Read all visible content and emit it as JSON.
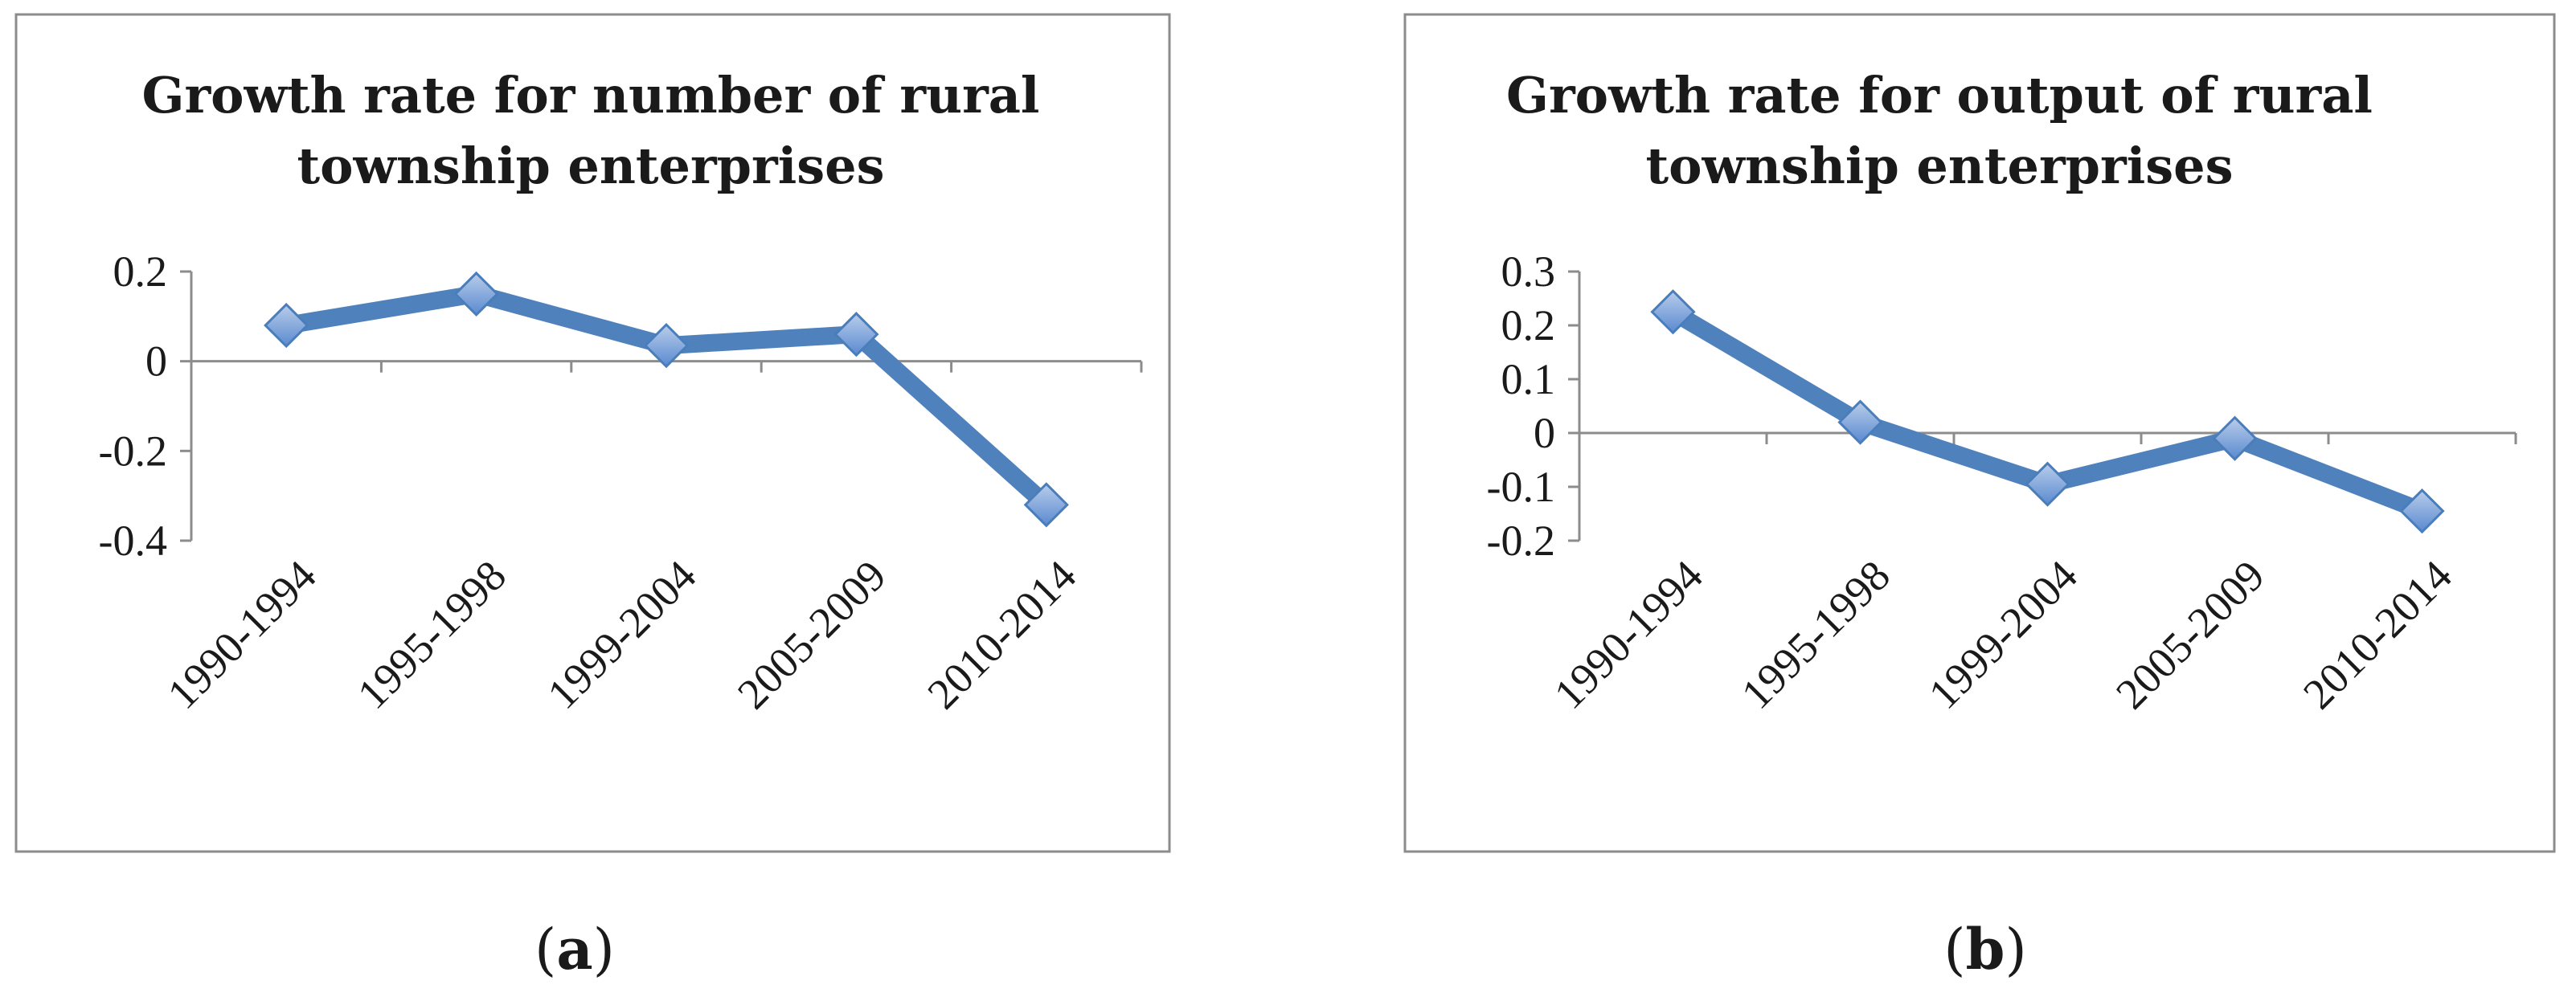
{
  "chart_data": [
    {
      "type": "line",
      "title_lines": [
        "Growth rate for number of rural",
        "township enterprises"
      ],
      "categories": [
        "1990-1994",
        "1995-1998",
        "1999-2004",
        "2005-2009",
        "2010-2014"
      ],
      "values": [
        0.08,
        0.15,
        0.035,
        0.06,
        -0.32
      ],
      "yticks": [
        "0.2",
        "0",
        "-0.2",
        "-0.4"
      ],
      "ylim": [
        -0.4,
        0.2
      ],
      "grid": false,
      "legend": "none",
      "line_color": "#4f81bd",
      "caption_open": "(",
      "caption_letter": "a",
      "caption_close": ")"
    },
    {
      "type": "line",
      "title_lines": [
        "Growth rate for output of rural",
        "township enterprises"
      ],
      "categories": [
        "1990-1994",
        "1995-1998",
        "1999-2004",
        "2005-2009",
        "2010-2014"
      ],
      "values": [
        0.225,
        0.02,
        -0.095,
        -0.01,
        -0.145
      ],
      "yticks": [
        "0.3",
        "0.2",
        "0.1",
        "0",
        "-0.1",
        "-0.2"
      ],
      "ylim": [
        -0.2,
        0.3
      ],
      "grid": false,
      "legend": "none",
      "line_color": "#4f81bd",
      "caption_open": "(",
      "caption_letter": "b",
      "caption_close": ")"
    }
  ]
}
